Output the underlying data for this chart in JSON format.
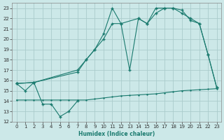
{
  "xlabel": "Humidex (Indice chaleur)",
  "xlim": [
    -0.5,
    23.5
  ],
  "ylim": [
    12,
    23.5
  ],
  "yticks": [
    12,
    13,
    14,
    15,
    16,
    17,
    18,
    19,
    20,
    21,
    22,
    23
  ],
  "xticks": [
    0,
    1,
    2,
    3,
    4,
    5,
    6,
    7,
    8,
    9,
    10,
    11,
    12,
    13,
    14,
    15,
    16,
    17,
    18,
    19,
    20,
    21,
    22,
    23
  ],
  "bg_color": "#cce8e8",
  "grid_color": "#aacccc",
  "line_color": "#1a7a6e",
  "line1_x": [
    0,
    1,
    2,
    3,
    4,
    5,
    6,
    7,
    8,
    9,
    10,
    11,
    12,
    13,
    14,
    15,
    16,
    17,
    18,
    19,
    20,
    21,
    22,
    23
  ],
  "line1_y": [
    14.1,
    14.1,
    14.1,
    14.1,
    14.1,
    14.1,
    14.1,
    14.1,
    14.1,
    14.2,
    14.3,
    14.4,
    14.5,
    14.55,
    14.6,
    14.65,
    14.7,
    14.8,
    14.9,
    15.0,
    15.05,
    15.1,
    15.15,
    15.2
  ],
  "line2_x": [
    0,
    1,
    2,
    3,
    4,
    5,
    6,
    7
  ],
  "line2_y": [
    15.7,
    15.0,
    15.8,
    13.7,
    13.7,
    12.5,
    13.0,
    14.0
  ],
  "line3_x": [
    0,
    2,
    7,
    8,
    9,
    10,
    11,
    12,
    13,
    14,
    15,
    16,
    17,
    18,
    19,
    20,
    21,
    22,
    23
  ],
  "line3_y": [
    15.7,
    15.8,
    16.8,
    18.0,
    19.0,
    20.5,
    23.0,
    21.5,
    17.0,
    22.0,
    21.5,
    23.0,
    23.0,
    23.0,
    22.5,
    22.0,
    21.5,
    18.5,
    15.3
  ],
  "line4_x": [
    0,
    2,
    7,
    8,
    9,
    10,
    11,
    12,
    14,
    15,
    16,
    17,
    18,
    19,
    20,
    21,
    22,
    23
  ],
  "line4_y": [
    15.7,
    15.8,
    17.0,
    18.0,
    19.0,
    20.0,
    21.5,
    21.5,
    22.0,
    21.5,
    22.5,
    23.0,
    23.0,
    22.8,
    21.8,
    21.5,
    18.5,
    15.3
  ]
}
